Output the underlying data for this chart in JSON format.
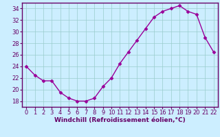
{
  "x": [
    0,
    1,
    2,
    3,
    4,
    5,
    6,
    7,
    8,
    9,
    10,
    11,
    12,
    13,
    14,
    15,
    16,
    17,
    18,
    19,
    20,
    21,
    22
  ],
  "y": [
    24.0,
    22.5,
    21.5,
    21.5,
    19.5,
    18.5,
    18.0,
    18.0,
    18.5,
    20.5,
    22.0,
    24.5,
    26.5,
    28.5,
    30.5,
    32.5,
    33.5,
    34.0,
    34.5,
    33.5,
    33.0,
    29.0,
    26.5
  ],
  "line_color": "#990099",
  "marker": "D",
  "marker_size": 2.5,
  "bg_color": "#cceeff",
  "grid_color": "#99cccc",
  "xlabel": "Windchill (Refroidissement éolien,°C)",
  "xlabel_color": "#660066",
  "tick_color": "#660066",
  "spine_color": "#660066",
  "xlim": [
    -0.5,
    22.5
  ],
  "ylim": [
    17.0,
    35.0
  ],
  "yticks": [
    18,
    20,
    22,
    24,
    26,
    28,
    30,
    32,
    34
  ],
  "xticks": [
    0,
    1,
    2,
    3,
    4,
    5,
    6,
    7,
    8,
    9,
    10,
    11,
    12,
    13,
    14,
    15,
    16,
    17,
    18,
    19,
    20,
    21,
    22
  ],
  "linewidth": 1.0,
  "xlabel_fontsize": 6.5,
  "tick_fontsize": 6.0
}
